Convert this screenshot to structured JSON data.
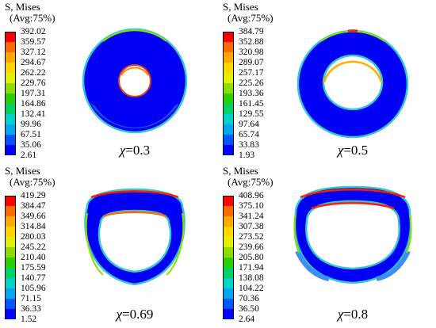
{
  "panels": [
    {
      "header_line1": "S, Mises",
      "header_line2": "(Avg:75%)",
      "legend_values": [
        "392.02",
        "359.57",
        "327.12",
        "294.67",
        "262.22",
        "229.76",
        "197.31",
        "164.86",
        "132.41",
        "99.96",
        "67.51",
        "35.06",
        "2.61"
      ],
      "chi_symbol": "χ",
      "caption_value": "=0.3"
    },
    {
      "header_line1": "S, Mises",
      "header_line2": "(Avg:75%)",
      "legend_values": [
        "384.79",
        "352.88",
        "320.98",
        "289.07",
        "257.17",
        "225.26",
        "193.36",
        "161.45",
        "129.55",
        "97.64",
        "65.74",
        "33.83",
        "1.93"
      ],
      "chi_symbol": "χ",
      "caption_value": "=0.5"
    },
    {
      "header_line1": "S, Mises",
      "header_line2": "(Avg:75%)",
      "legend_values": [
        "419.29",
        "384.47",
        "349.66",
        "314.84",
        "280.03",
        "245.22",
        "210.40",
        "175.59",
        "140.77",
        "105.96",
        "71.15",
        "36.33",
        "1.52"
      ],
      "chi_symbol": "χ",
      "caption_value": "=0.69"
    },
    {
      "header_line1": "S, Mises",
      "header_line2": "(Avg:75%)",
      "legend_values": [
        "408.96",
        "375.10",
        "341.24",
        "307.38",
        "273.52",
        "239.66",
        "205.80",
        "171.94",
        "138.08",
        "104.22",
        "70.36",
        "36.50",
        "2.64"
      ],
      "chi_symbol": "χ",
      "caption_value": "=0.8"
    }
  ],
  "legend_colors": [
    "#ff0000",
    "#ff6a00",
    "#ffa800",
    "#ffd500",
    "#e1f000",
    "#8cdc00",
    "#2cd000",
    "#00d26a",
    "#00d2c8",
    "#00a8f0",
    "#0056ff",
    "#0000ff"
  ]
}
